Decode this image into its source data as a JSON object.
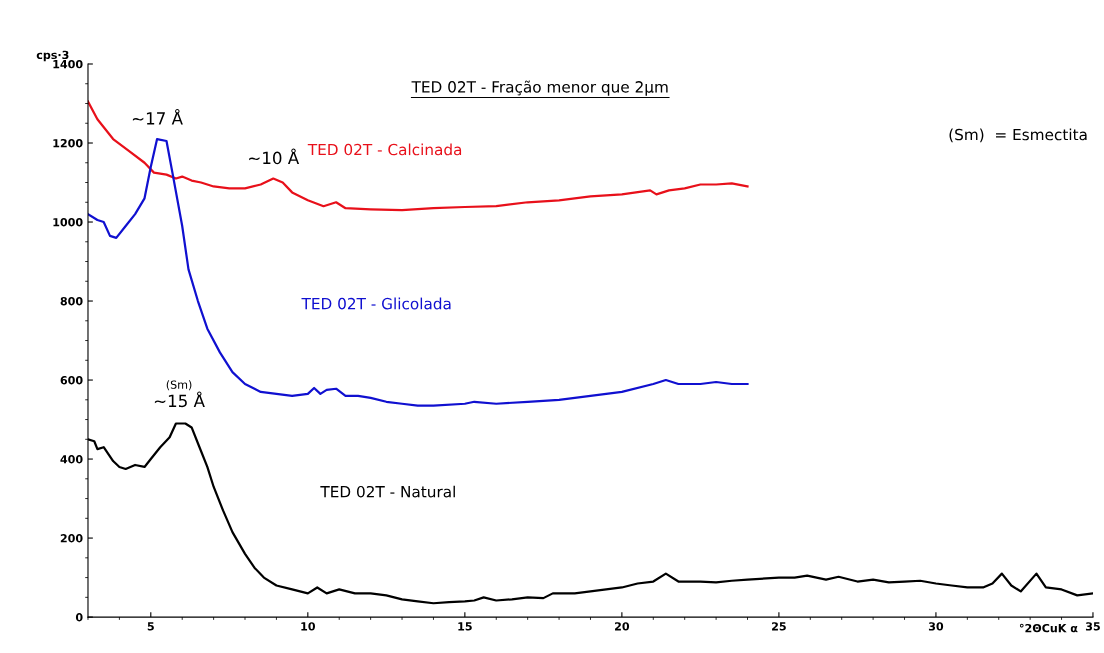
{
  "chart_data": {
    "type": "line",
    "title": "TED 02T - Fração menor que 2µm",
    "xlabel": "°2ΘCuK α",
    "ylabel": "cps·3",
    "xlim": [
      3,
      35
    ],
    "xticks": [
      5,
      10,
      15,
      20,
      25,
      30,
      35
    ],
    "ylim": [
      0,
      1400
    ],
    "yticks": [
      0,
      200,
      400,
      600,
      800,
      1000,
      1200,
      1400
    ],
    "grid": false,
    "legend": false,
    "marker": "none",
    "line_style": "solid",
    "series": [
      {
        "name": "TED 02T - Calcinada",
        "color": "#e8101a",
        "x": [
          3,
          3.3,
          3.8,
          4.3,
          4.8,
          5.1,
          5.5,
          5.8,
          6,
          6.3,
          6.6,
          7,
          7.5,
          8,
          8.5,
          8.9,
          9.2,
          9.5,
          10,
          10.5,
          10.9,
          11.2,
          12,
          13,
          14,
          15,
          16,
          17,
          18,
          19,
          20,
          20.9,
          21.1,
          21.5,
          22,
          22.5,
          23,
          23.5,
          24
        ],
        "values": [
          1305,
          1260,
          1210,
          1180,
          1150,
          1125,
          1120,
          1110,
          1115,
          1105,
          1100,
          1090,
          1085,
          1085,
          1095,
          1110,
          1100,
          1075,
          1055,
          1040,
          1050,
          1035,
          1032,
          1030,
          1035,
          1038,
          1040,
          1050,
          1055,
          1065,
          1070,
          1080,
          1070,
          1080,
          1085,
          1095,
          1095,
          1098,
          1090
        ]
      },
      {
        "name": "TED 02T - Glicolada",
        "color": "#1010d0",
        "x": [
          3,
          3.3,
          3.5,
          3.7,
          3.9,
          4.2,
          4.5,
          4.8,
          5,
          5.2,
          5.5,
          5.7,
          6,
          6.2,
          6.5,
          6.8,
          7.2,
          7.6,
          8,
          8.5,
          9,
          9.5,
          10,
          10.2,
          10.4,
          10.6,
          10.9,
          11.2,
          11.6,
          12,
          12.5,
          13,
          13.5,
          14,
          15,
          15.3,
          16,
          17,
          18,
          19,
          20,
          21,
          21.4,
          21.8,
          22.5,
          23,
          23.5,
          24
        ],
        "values": [
          1020,
          1005,
          1000,
          965,
          960,
          990,
          1020,
          1060,
          1140,
          1210,
          1205,
          1120,
          990,
          880,
          800,
          730,
          670,
          620,
          590,
          570,
          565,
          560,
          565,
          580,
          565,
          575,
          578,
          560,
          560,
          555,
          545,
          540,
          535,
          535,
          540,
          545,
          540,
          545,
          550,
          560,
          570,
          590,
          600,
          590,
          590,
          595,
          590,
          590
        ]
      },
      {
        "name": "TED 02T - Natural",
        "color": "#000000",
        "x": [
          3,
          3.2,
          3.3,
          3.5,
          3.8,
          4,
          4.2,
          4.5,
          4.8,
          5,
          5.3,
          5.6,
          5.8,
          6.1,
          6.3,
          6.5,
          6.8,
          7,
          7.3,
          7.6,
          8,
          8.3,
          8.6,
          9,
          9.5,
          10,
          10.3,
          10.6,
          11,
          11.5,
          12,
          12.5,
          13,
          13.5,
          14,
          14.5,
          15,
          15.3,
          15.6,
          16,
          16.5,
          17,
          17.5,
          17.8,
          18.5,
          19,
          19.5,
          20,
          20.5,
          21,
          21.4,
          21.8,
          22.5,
          23,
          23.5,
          24,
          25,
          25.5,
          25.9,
          26.5,
          26.9,
          27.5,
          28,
          28.5,
          29,
          29.5,
          30,
          30.5,
          31,
          31.5,
          31.8,
          32.1,
          32.4,
          32.7,
          33.2,
          33.5,
          34,
          34.5,
          35
        ],
        "values": [
          450,
          445,
          425,
          430,
          395,
          380,
          375,
          385,
          380,
          400,
          430,
          455,
          490,
          490,
          480,
          440,
          380,
          330,
          270,
          215,
          160,
          125,
          100,
          80,
          70,
          60,
          75,
          60,
          70,
          60,
          60,
          55,
          45,
          40,
          35,
          38,
          40,
          42,
          50,
          42,
          45,
          50,
          48,
          60,
          60,
          65,
          70,
          75,
          85,
          90,
          110,
          90,
          90,
          88,
          92,
          95,
          100,
          100,
          105,
          95,
          102,
          90,
          95,
          88,
          90,
          92,
          85,
          80,
          75,
          75,
          85,
          110,
          80,
          65,
          110,
          75,
          70,
          55,
          60
        ]
      }
    ],
    "annotations": [
      {
        "text": "~17 Å",
        "x": 5.2,
        "y": 1210
      },
      {
        "text": "~10 Å",
        "x": 8.9,
        "y": 1110
      },
      {
        "text": "~15 Å",
        "x": 5.9,
        "y": 495
      },
      {
        "text": "(Sm)",
        "x": 5.9,
        "y": 495
      },
      "(Sm)  = Esmectita"
    ]
  }
}
